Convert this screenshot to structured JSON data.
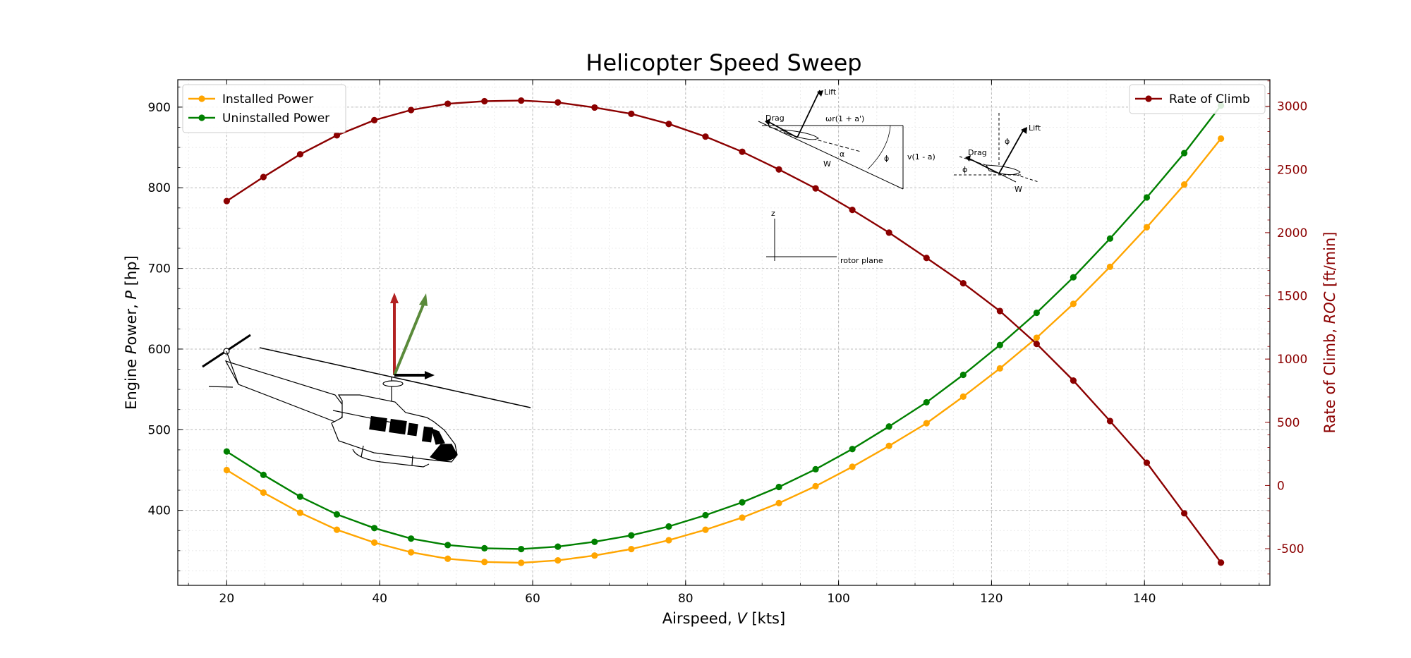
{
  "chart_data": {
    "type": "line",
    "title": "Helicopter Speed Sweep",
    "xlabel": "Airspeed, V [kts]",
    "ylabel_left": "Engine Power, P [hp]",
    "ylabel_right": "Rate of Climb, ROC [ft/min]",
    "xlim": [
      13.6,
      156.4
    ],
    "ylim_left": [
      307,
      934
    ],
    "ylim_right": [
      -790,
      3210
    ],
    "x_ticks": [
      20,
      40,
      60,
      80,
      100,
      120,
      140
    ],
    "y_left_ticks": [
      400,
      500,
      600,
      700,
      800,
      900
    ],
    "y_right_ticks": [
      -500,
      0,
      500,
      1000,
      1500,
      2000,
      2500,
      3000
    ],
    "grid": true,
    "x": [
      20,
      24.8,
      29.6,
      34.4,
      39.3,
      44.1,
      48.9,
      53.7,
      58.5,
      63.3,
      68.1,
      72.9,
      77.8,
      82.6,
      87.4,
      92.2,
      97.0,
      101.8,
      106.6,
      111.5,
      116.3,
      121.1,
      125.9,
      130.7,
      135.5,
      140.3,
      145.2,
      150
    ],
    "series": [
      {
        "name": "Installed Power",
        "axis": "left",
        "color": "#ffa500",
        "values": [
          450,
          422,
          397,
          376,
          360,
          348,
          340,
          336,
          335,
          338,
          344,
          352,
          363,
          376,
          391,
          409,
          430,
          454,
          480,
          508,
          541,
          576,
          614,
          656,
          702,
          751,
          804,
          861
        ]
      },
      {
        "name": "Uninstalled Power",
        "axis": "left",
        "color": "#008000",
        "values": [
          473,
          444,
          417,
          395,
          378,
          365,
          357,
          353,
          352,
          355,
          361,
          369,
          380,
          394,
          410,
          429,
          451,
          476,
          504,
          534,
          568,
          605,
          645,
          689,
          737,
          788,
          843,
          902
        ]
      },
      {
        "name": "Rate of Climb",
        "axis": "right",
        "color": "#8b0000",
        "values": [
          2250,
          2440,
          2620,
          2770,
          2890,
          2970,
          3020,
          3040,
          3045,
          3030,
          2990,
          2940,
          2860,
          2760,
          2640,
          2500,
          2350,
          2180,
          2000,
          1800,
          1600,
          1380,
          1120,
          830,
          510,
          180,
          -220,
          -610
        ]
      }
    ],
    "legend_left_placement": "upper-left",
    "legend_right_placement": "upper-right"
  },
  "inset": {
    "lift": "Lift",
    "drag": "Drag",
    "omega": "ωr(1 + a')",
    "w": "W",
    "v": "v(1 - a)",
    "phi": "ϕ",
    "alpha": "α",
    "z": "z",
    "rotor_plane": "rotor plane"
  }
}
